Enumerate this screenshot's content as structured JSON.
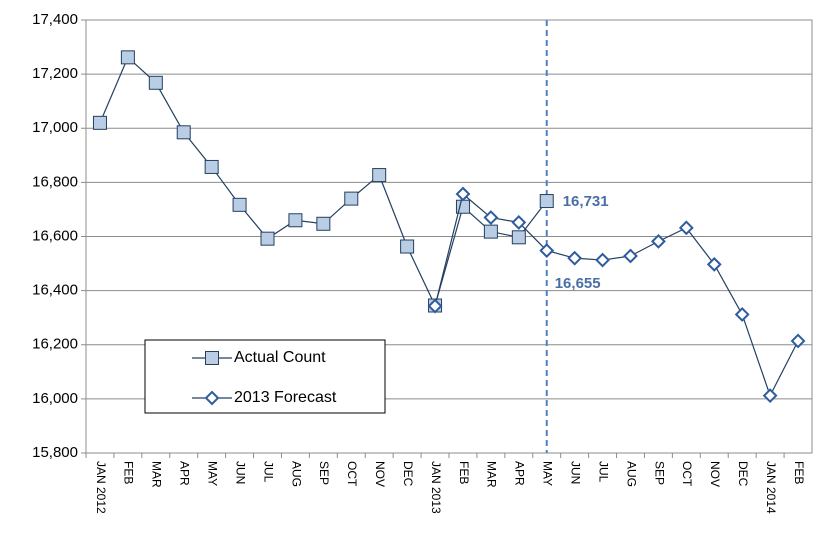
{
  "chart_data": {
    "type": "line",
    "categories": [
      "JAN 2012",
      "FEB",
      "MAR",
      "APR",
      "MAY",
      "JUN",
      "JUL",
      "AUG",
      "SEP",
      "OCT",
      "NOV",
      "DEC",
      "JAN 2013",
      "FEB",
      "MAR",
      "APR",
      "MAY",
      "JUN",
      "JUL",
      "AUG",
      "SEP",
      "OCT",
      "NOV",
      "DEC",
      "JAN 2014",
      "FEB"
    ],
    "series": [
      {
        "name": "Actual Count",
        "color": "#b9cde5",
        "marker": "square",
        "values": [
          17020,
          17262,
          17168,
          16985,
          16857,
          16717,
          16592,
          16660,
          16647,
          16740,
          16827,
          16563,
          16345,
          16710,
          16618,
          16597,
          16731,
          null,
          null,
          null,
          null,
          null,
          null,
          null,
          null,
          null
        ]
      },
      {
        "name": "2013 Forecast",
        "color": "#ffffff",
        "marker": "diamond",
        "values": [
          null,
          null,
          null,
          null,
          null,
          null,
          null,
          null,
          null,
          null,
          null,
          null,
          16343,
          16757,
          16670,
          16652,
          16548,
          16520,
          16513,
          16528,
          16582,
          16632,
          16497,
          16312,
          16012,
          16214
        ]
      }
    ],
    "annotations": [
      "16,731",
      "16,655"
    ],
    "ylim": [
      15800,
      17400
    ],
    "yticks": [
      {
        "value": 15800,
        "label": "15,800"
      },
      {
        "value": 16000,
        "label": "16,000"
      },
      {
        "value": 16200,
        "label": "16,200"
      },
      {
        "value": 16400,
        "label": "16,400"
      },
      {
        "value": 16600,
        "label": "16,600"
      },
      {
        "value": 16800,
        "label": "16,800"
      },
      {
        "value": 17000,
        "label": "17,000"
      },
      {
        "value": 17200,
        "label": "17,200"
      },
      {
        "value": 17400,
        "label": "17,400"
      }
    ],
    "grid": true
  }
}
